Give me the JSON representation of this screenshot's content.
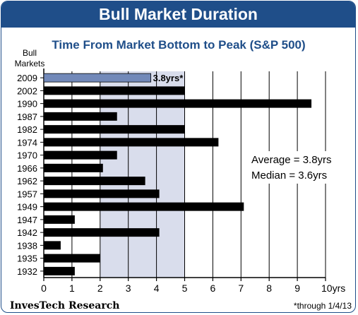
{
  "header": {
    "title": "Bull Market Duration"
  },
  "footer": {
    "source": "InvesTech Research",
    "note": "*through 1/4/13"
  },
  "colors": {
    "brand": "#1f4e89",
    "bar": "#000000",
    "highlight_bar": "#7289b9",
    "shade": "#d9ddec"
  },
  "chart_data": {
    "type": "bar",
    "orientation": "horizontal",
    "title": "Time From Market Bottom to Peak (S&P 500)",
    "ylabel": "Bull\nMarkets",
    "categories": [
      "2009",
      "2002",
      "1990",
      "1987",
      "1982",
      "1974",
      "1970",
      "1966",
      "1962",
      "1957",
      "1949",
      "1947",
      "1942",
      "1938",
      "1935",
      "1932"
    ],
    "values": [
      3.8,
      5.0,
      9.5,
      2.6,
      5.0,
      6.2,
      2.6,
      2.1,
      3.6,
      4.1,
      7.1,
      1.1,
      4.1,
      0.6,
      2.0,
      1.1
    ],
    "highlight_index": 0,
    "highlight_label": "3.8yrs*",
    "xlim": [
      0,
      10
    ],
    "xticks": [
      "0",
      "1",
      "2",
      "3",
      "4",
      "5",
      "6",
      "7",
      "8",
      "9",
      "10yrs"
    ],
    "grid": true,
    "shaded_range": [
      2,
      5
    ],
    "annotations": [
      "Average = 3.8yrs",
      "Median  = 3.6yrs"
    ]
  }
}
